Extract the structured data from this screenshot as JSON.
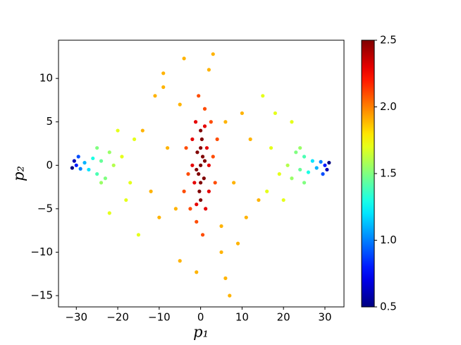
{
  "chart_data": {
    "type": "scatter",
    "x_label": "p₁",
    "y_label": "p₂",
    "x": [
      0,
      0.5,
      -0.5,
      0,
      0,
      1,
      -1,
      0.3,
      -0.3,
      0.8,
      -0.8,
      0,
      0,
      1.5,
      -1.5,
      2,
      -2,
      1,
      -1,
      2,
      -2,
      1.2,
      -1.2,
      3,
      -3,
      2.5,
      -2.5,
      3.5,
      -3.5,
      1,
      -1,
      4,
      -4,
      0.5,
      -0.5,
      6,
      -6,
      8,
      -8,
      10,
      -10,
      5,
      -5,
      12,
      -12,
      3,
      -4,
      -9,
      5,
      -5,
      6,
      7,
      2,
      -1,
      14,
      -14,
      9,
      -9,
      11,
      -11,
      17,
      -17,
      16,
      -16,
      18,
      -18,
      15,
      -15,
      19,
      -19,
      -22,
      22,
      -20,
      20,
      -21,
      -22,
      -23,
      -24,
      -25,
      -26,
      -27,
      -28,
      -29,
      -30,
      -30.5,
      -31,
      -29.5,
      -25,
      -24,
      21,
      22,
      23,
      24,
      25,
      26,
      27,
      28,
      29,
      30,
      30.5,
      31,
      29.5,
      25,
      24
    ],
    "y": [
      0,
      1,
      -1,
      2,
      -2,
      0.5,
      -0.5,
      3,
      -3,
      -1.5,
      1.5,
      4,
      -4,
      2,
      -2,
      0,
      0,
      4.5,
      -4.5,
      -3,
      3,
      -5,
      5,
      1,
      -1,
      5,
      -5,
      -2,
      2,
      6.5,
      -6.5,
      3,
      -3,
      -8,
      8,
      5,
      -5,
      -2,
      2,
      6,
      -6,
      -7,
      7,
      3,
      -3,
      12.8,
      12.3,
      10.6,
      -10,
      -11,
      -13,
      -15,
      11,
      -12.3,
      -4,
      4,
      -9,
      9,
      -6,
      8,
      2,
      -2,
      -3,
      3,
      6,
      -4,
      8,
      -8,
      -1,
      1,
      -5.5,
      5,
      4,
      -4,
      0,
      1.5,
      -1.5,
      0.5,
      -1,
      0.8,
      -0.5,
      0.3,
      -0.4,
      0,
      0.5,
      -0.3,
      1,
      2,
      -2,
      0,
      -1.5,
      1.5,
      -0.5,
      1,
      -0.8,
      0.5,
      -0.3,
      0.4,
      0,
      -0.5,
      0.3,
      -1,
      -2,
      2
    ],
    "c": [
      2.5,
      2.5,
      2.5,
      2.5,
      2.5,
      2.5,
      2.5,
      2.5,
      2.5,
      2.5,
      2.5,
      2.5,
      2.5,
      2.3,
      2.3,
      2.3,
      2.3,
      2.3,
      2.3,
      2.3,
      2.3,
      2.3,
      2.3,
      2.1,
      2.1,
      2.1,
      2.1,
      2.1,
      2.1,
      2.1,
      2.1,
      2.1,
      2.1,
      2.1,
      2.1,
      1.9,
      1.9,
      1.9,
      1.9,
      1.9,
      1.9,
      1.9,
      1.9,
      1.9,
      1.9,
      1.9,
      1.9,
      1.9,
      1.9,
      1.9,
      1.9,
      1.9,
      1.9,
      1.9,
      1.9,
      1.9,
      1.9,
      1.9,
      1.9,
      1.9,
      1.7,
      1.7,
      1.7,
      1.7,
      1.7,
      1.7,
      1.7,
      1.7,
      1.7,
      1.7,
      1.7,
      1.7,
      1.7,
      1.7,
      1.6,
      1.55,
      1.5,
      1.45,
      1.4,
      1.3,
      1.2,
      1.1,
      1.0,
      0.8,
      0.6,
      0.5,
      0.9,
      1.5,
      1.55,
      1.6,
      1.55,
      1.5,
      1.45,
      1.4,
      1.3,
      1.2,
      1.1,
      1.0,
      0.8,
      0.6,
      0.5,
      0.9,
      1.5,
      1.55
    ],
    "colormap": "jet",
    "clim": [
      0.5,
      2.5
    ],
    "cbar_ticks": [
      0.5,
      {
        "value": 1,
        "label": "1.0"
      },
      1.5,
      {
        "value": 2,
        "label": "2.0"
      },
      2.5
    ],
    "xlim": [
      -34.3,
      34.6
    ],
    "xticks": [
      {
        "value": -30,
        "label": "−30"
      },
      {
        "value": -20,
        "label": "−20"
      },
      {
        "value": -10,
        "label": "−10"
      },
      0,
      10,
      20,
      30
    ],
    "ylim": [
      -16.3,
      14.4
    ],
    "yticks": [
      {
        "value": -15,
        "label": "−15"
      },
      {
        "value": -10,
        "label": "−10"
      },
      {
        "value": -5,
        "label": "−5"
      },
      0,
      5,
      10
    ]
  }
}
